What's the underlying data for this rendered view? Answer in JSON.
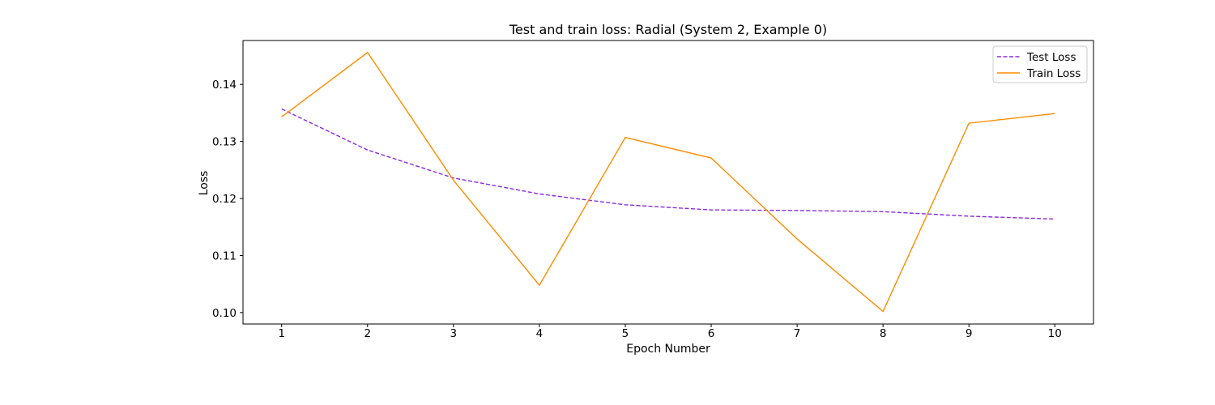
{
  "chart_data": {
    "type": "line",
    "title": "Test and train loss: Radial (System 2, Example 0)",
    "xlabel": "Epoch Number",
    "ylabel": "Loss",
    "x": [
      1,
      2,
      3,
      4,
      5,
      6,
      7,
      8,
      9,
      10
    ],
    "xticks": [
      "1",
      "2",
      "3",
      "4",
      "5",
      "6",
      "7",
      "8",
      "9",
      "10"
    ],
    "yticks": [
      "0.10",
      "0.11",
      "0.12",
      "0.13",
      "0.14"
    ],
    "xlim": [
      0.55,
      10.45
    ],
    "ylim": [
      0.098,
      0.1477
    ],
    "grid": false,
    "legend_position": "top-right",
    "series": [
      {
        "name": "Test Loss",
        "style": "dashed",
        "color": "#8a2be2",
        "values": [
          0.1357,
          0.1285,
          0.1236,
          0.1208,
          0.1189,
          0.118,
          0.1179,
          0.1177,
          0.1169,
          0.1164
        ]
      },
      {
        "name": "Train Loss",
        "style": "solid",
        "color": "#ff8c00",
        "values": [
          0.1343,
          0.1456,
          0.1232,
          0.1048,
          0.1307,
          0.1271,
          0.1129,
          0.1002,
          0.1332,
          0.1349
        ]
      }
    ]
  }
}
